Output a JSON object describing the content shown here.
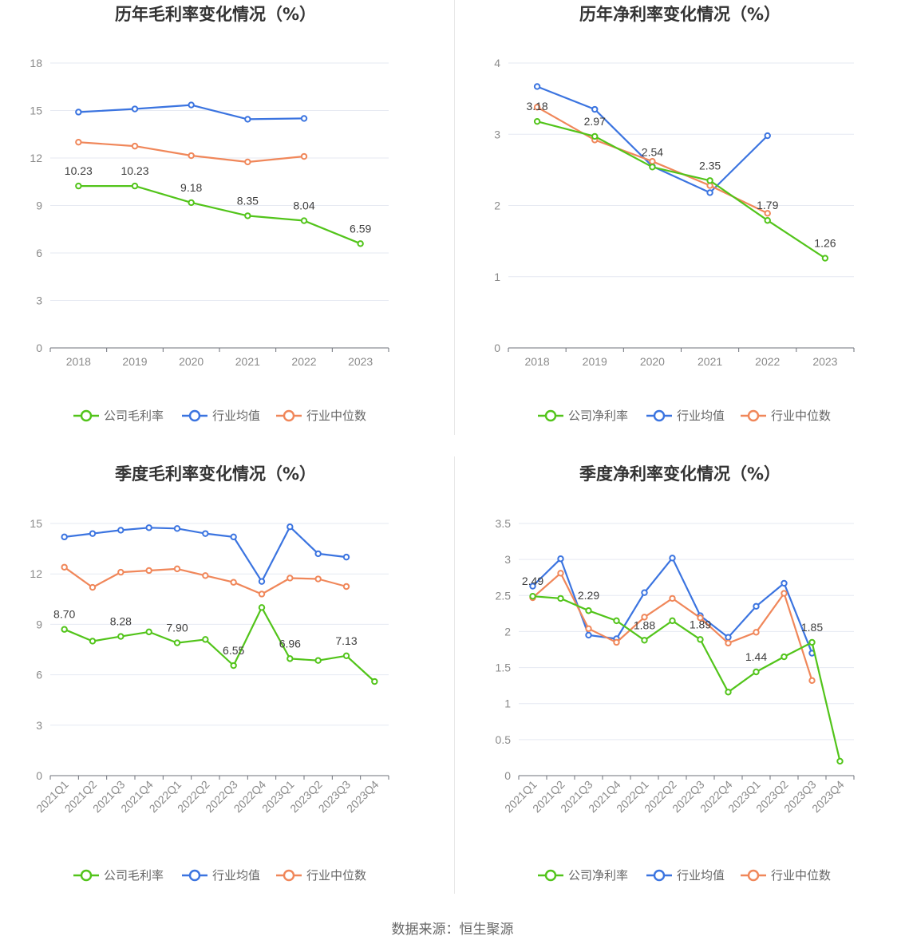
{
  "source_label": "数据来源：恒生聚源",
  "colors": {
    "company": "#52c41a",
    "avg": "#3b74e0",
    "median": "#f0875a"
  },
  "legend_gross": [
    "公司毛利率",
    "行业均值",
    "行业中位数"
  ],
  "legend_net": [
    "公司净利率",
    "行业均值",
    "行业中位数"
  ],
  "chart_data": [
    {
      "type": "line",
      "title": "历年毛利率变化情况（%）",
      "categories": [
        "2018",
        "2019",
        "2020",
        "2021",
        "2022",
        "2023"
      ],
      "ylim": [
        0,
        18
      ],
      "yticks": [
        "0",
        "3",
        "6",
        "9",
        "12",
        "15",
        "18"
      ],
      "legend_position": "bottom",
      "series": [
        {
          "name": "公司毛利率",
          "values": [
            10.23,
            10.23,
            9.18,
            8.35,
            8.04,
            6.59
          ],
          "labels": [
            "10.23",
            "10.23",
            "9.18",
            "8.35",
            "8.04",
            "6.59"
          ]
        },
        {
          "name": "行业均值",
          "values": [
            14.9,
            15.1,
            15.35,
            14.45,
            14.5,
            null
          ]
        },
        {
          "name": "行业中位数",
          "values": [
            13.0,
            12.75,
            12.15,
            11.75,
            12.1,
            null
          ]
        }
      ]
    },
    {
      "type": "line",
      "title": "历年净利率变化情况（%）",
      "categories": [
        "2018",
        "2019",
        "2020",
        "2021",
        "2022",
        "2023"
      ],
      "ylim": [
        0,
        4
      ],
      "yticks": [
        "0",
        "1",
        "2",
        "3",
        "4"
      ],
      "legend_position": "bottom",
      "series": [
        {
          "name": "公司净利率",
          "values": [
            3.18,
            2.97,
            2.54,
            2.35,
            1.79,
            1.26
          ],
          "labels": [
            "3.18",
            "2.97",
            "2.54",
            "2.35",
            "1.79",
            "1.26"
          ]
        },
        {
          "name": "行业均值",
          "values": [
            3.67,
            3.35,
            2.55,
            2.18,
            2.98,
            null
          ]
        },
        {
          "name": "行业中位数",
          "values": [
            3.38,
            2.92,
            2.62,
            2.28,
            1.89,
            null
          ]
        }
      ]
    },
    {
      "type": "line",
      "title": "季度毛利率变化情况（%）",
      "categories": [
        "2021Q1",
        "2021Q2",
        "2021Q3",
        "2021Q4",
        "2022Q1",
        "2022Q2",
        "2022Q3",
        "2022Q4",
        "2023Q1",
        "2023Q2",
        "2023Q3",
        "2023Q4"
      ],
      "ylim": [
        0,
        15
      ],
      "yticks": [
        "0",
        "3",
        "6",
        "9",
        "12",
        "15"
      ],
      "legend_position": "bottom",
      "series": [
        {
          "name": "公司毛利率",
          "values": [
            8.7,
            8.0,
            8.28,
            8.55,
            7.9,
            8.1,
            6.55,
            10.0,
            6.96,
            6.85,
            7.13,
            5.6
          ],
          "labels": [
            "8.70",
            null,
            "8.28",
            null,
            "7.90",
            null,
            "6.55",
            null,
            "6.96",
            null,
            "7.13",
            null
          ]
        },
        {
          "name": "行业均值",
          "values": [
            14.2,
            14.4,
            14.6,
            14.75,
            14.7,
            14.4,
            14.2,
            11.55,
            14.8,
            13.2,
            13.0,
            null
          ]
        },
        {
          "name": "行业中位数",
          "values": [
            12.4,
            11.2,
            12.1,
            12.2,
            12.3,
            11.9,
            11.5,
            10.8,
            11.75,
            11.7,
            11.25,
            null
          ]
        }
      ]
    },
    {
      "type": "line",
      "title": "季度净利率变化情况（%）",
      "categories": [
        "2021Q1",
        "2021Q2",
        "2021Q3",
        "2021Q4",
        "2022Q1",
        "2022Q2",
        "2022Q3",
        "2022Q4",
        "2023Q1",
        "2023Q2",
        "2023Q3",
        "2023Q4"
      ],
      "ylim": [
        0,
        3.5
      ],
      "yticks": [
        "0",
        "0.5",
        "1",
        "1.5",
        "2",
        "2.5",
        "3",
        "3.5"
      ],
      "legend_position": "bottom",
      "series": [
        {
          "name": "公司净利率",
          "values": [
            2.49,
            2.46,
            2.29,
            2.15,
            1.88,
            2.15,
            1.89,
            1.16,
            1.44,
            1.65,
            1.85,
            0.2
          ],
          "labels": [
            "2.49",
            null,
            "2.29",
            null,
            "1.88",
            null,
            "1.89",
            null,
            "1.44",
            null,
            "1.85",
            null
          ]
        },
        {
          "name": "行业均值",
          "values": [
            2.63,
            3.01,
            1.95,
            1.9,
            2.54,
            3.02,
            2.22,
            1.92,
            2.35,
            2.67,
            1.7,
            null
          ]
        },
        {
          "name": "行业中位数",
          "values": [
            2.47,
            2.81,
            2.04,
            1.85,
            2.2,
            2.46,
            2.19,
            1.84,
            1.99,
            2.53,
            1.32,
            null
          ]
        }
      ]
    }
  ]
}
